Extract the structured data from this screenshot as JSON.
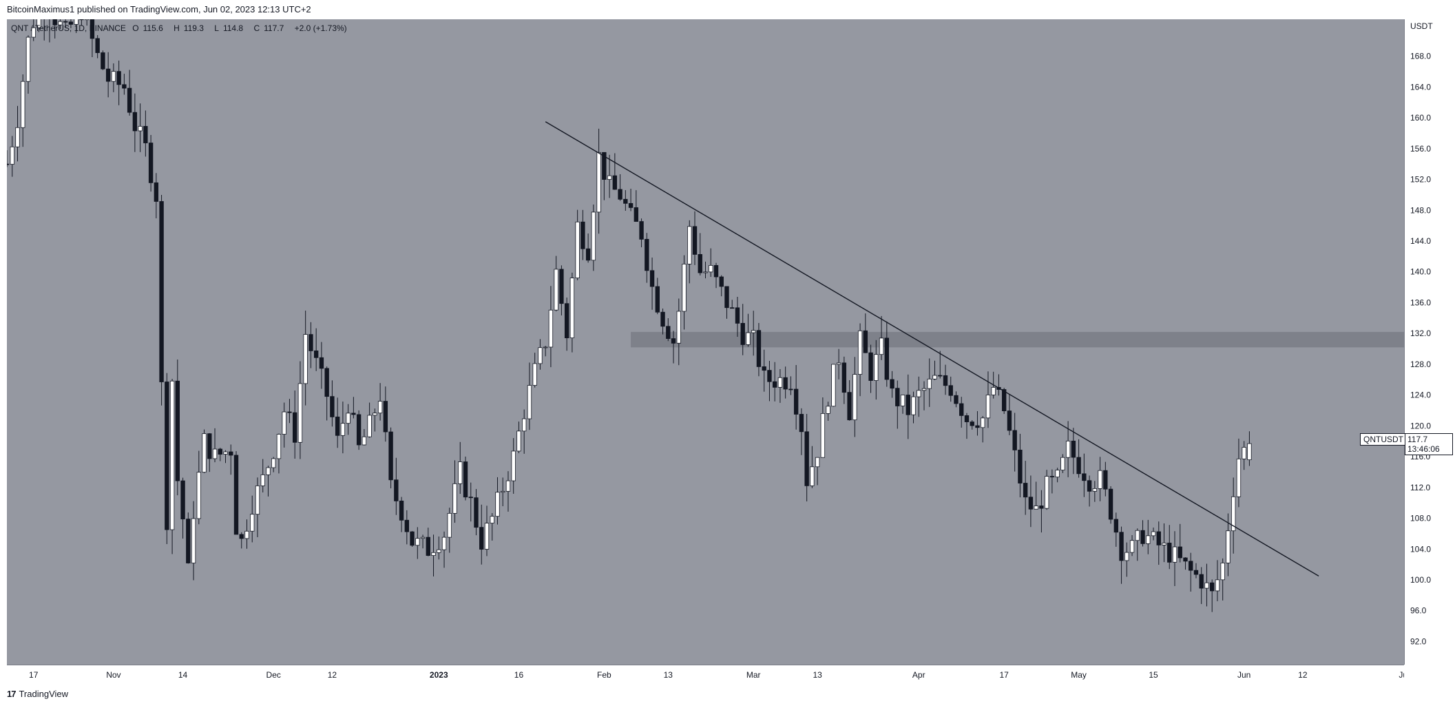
{
  "header": {
    "published_by": "BitcoinMaximus1 published on TradingView.com, Jun 02, 2023 12:13 UTC+2"
  },
  "legend": {
    "pair": "QNT / TetherUS, 1D, BINANCE",
    "open_label": "O",
    "open_value": "115.6",
    "high_label": "H",
    "high_value": "119.3",
    "low_label": "L",
    "low_value": "114.8",
    "close_label": "C",
    "close_value": "117.7",
    "change": "+2.0 (+1.73%)"
  },
  "price_tag": {
    "symbol": "QNTUSDT",
    "price": "117.7",
    "countdown": "13:46:06"
  },
  "footer": {
    "brand": "TradingView",
    "logo": "17"
  },
  "colors": {
    "plot_bg": "#9598a1",
    "up_candle": "#ffffff",
    "down_candle": "#131722",
    "wick": "#131722",
    "zone": "#7e818a"
  },
  "chart_data": {
    "type": "candlestick",
    "currency_label": "USDT",
    "y_ticks": [
      "168.0",
      "164.0",
      "160.0",
      "156.0",
      "152.0",
      "148.0",
      "144.0",
      "140.0",
      "136.0",
      "132.0",
      "128.0",
      "124.0",
      "120.0",
      "116.0",
      "112.0",
      "108.0",
      "104.0",
      "100.0",
      "96.0",
      "92.0"
    ],
    "y_tick_values": [
      168,
      164,
      160,
      156,
      152,
      148,
      144,
      140,
      136,
      132,
      128,
      124,
      120,
      116,
      112,
      108,
      104,
      100,
      96,
      92
    ],
    "x_ticks": [
      "17",
      "Nov",
      "14",
      "Dec",
      "12",
      "2023",
      "16",
      "Feb",
      "13",
      "Mar",
      "13",
      "Apr",
      "17",
      "May",
      "15",
      "Jun",
      "12",
      "Jul"
    ],
    "x_tick_dates": [
      "2022-10-17",
      "2022-11-01",
      "2022-11-14",
      "2022-12-01",
      "2022-12-12",
      "2023-01-01",
      "2023-01-16",
      "2023-02-01",
      "2023-02-13",
      "2023-03-01",
      "2023-03-13",
      "2023-04-01",
      "2023-04-17",
      "2023-05-01",
      "2023-05-15",
      "2023-06-01",
      "2023-06-12",
      "2023-07-01"
    ],
    "x_range": [
      "2022-10-12",
      "2023-07-01"
    ],
    "ylim": [
      89.0,
      172.8
    ],
    "anchor_closes": [
      [
        "2022-10-12",
        154
      ],
      [
        "2022-10-14",
        160
      ],
      [
        "2022-10-16",
        170
      ],
      [
        "2022-10-18",
        175
      ],
      [
        "2022-10-20",
        174
      ],
      [
        "2022-10-23",
        171
      ],
      [
        "2022-10-26",
        174
      ],
      [
        "2022-10-29",
        168
      ],
      [
        "2022-10-31",
        165
      ],
      [
        "2022-11-03",
        164
      ],
      [
        "2022-11-05",
        159
      ],
      [
        "2022-11-07",
        156
      ],
      [
        "2022-11-09",
        150
      ],
      [
        "2022-11-10",
        125
      ],
      [
        "2022-11-11",
        108
      ],
      [
        "2022-11-12",
        126
      ],
      [
        "2022-11-13",
        113
      ],
      [
        "2022-11-14",
        108
      ],
      [
        "2022-11-15",
        101
      ],
      [
        "2022-11-16",
        109
      ],
      [
        "2022-11-18",
        118
      ],
      [
        "2022-11-20",
        116
      ],
      [
        "2022-11-23",
        117
      ],
      [
        "2022-11-24",
        107
      ],
      [
        "2022-11-25",
        105
      ],
      [
        "2022-11-27",
        110
      ],
      [
        "2022-11-29",
        113
      ],
      [
        "2022-12-01",
        117
      ],
      [
        "2022-12-03",
        122
      ],
      [
        "2022-12-05",
        119
      ],
      [
        "2022-12-07",
        132
      ],
      [
        "2022-12-09",
        128
      ],
      [
        "2022-12-11",
        124
      ],
      [
        "2022-12-13",
        118
      ],
      [
        "2022-12-15",
        123
      ],
      [
        "2022-12-17",
        117
      ],
      [
        "2022-12-19",
        120
      ],
      [
        "2022-12-21",
        124
      ],
      [
        "2022-12-23",
        112
      ],
      [
        "2022-12-25",
        109
      ],
      [
        "2022-12-27",
        105
      ],
      [
        "2022-12-30",
        104
      ],
      [
        "2023-01-02",
        106
      ],
      [
        "2023-01-05",
        114
      ],
      [
        "2023-01-07",
        110
      ],
      [
        "2023-01-09",
        105
      ],
      [
        "2023-01-11",
        108
      ],
      [
        "2023-01-13",
        112
      ],
      [
        "2023-01-15",
        116
      ],
      [
        "2023-01-17",
        122
      ],
      [
        "2023-01-19",
        127
      ],
      [
        "2023-01-21",
        131
      ],
      [
        "2023-01-23",
        140
      ],
      [
        "2023-01-25",
        132
      ],
      [
        "2023-01-27",
        146
      ],
      [
        "2023-01-29",
        143
      ],
      [
        "2023-01-31",
        155
      ],
      [
        "2023-02-02",
        151
      ],
      [
        "2023-02-04",
        150
      ],
      [
        "2023-02-06",
        147
      ],
      [
        "2023-02-08",
        145
      ],
      [
        "2023-02-10",
        138
      ],
      [
        "2023-02-12",
        134
      ],
      [
        "2023-02-14",
        131
      ],
      [
        "2023-02-15",
        135
      ],
      [
        "2023-02-17",
        146
      ],
      [
        "2023-02-19",
        140
      ],
      [
        "2023-02-21",
        140
      ],
      [
        "2023-02-24",
        136
      ],
      [
        "2023-02-27",
        132
      ],
      [
        "2023-03-01",
        131
      ],
      [
        "2023-03-03",
        126
      ],
      [
        "2023-03-06",
        126
      ],
      [
        "2023-03-08",
        126
      ],
      [
        "2023-03-10",
        120
      ],
      [
        "2023-03-11",
        113
      ],
      [
        "2023-03-13",
        117
      ],
      [
        "2023-03-15",
        124
      ],
      [
        "2023-03-17",
        129
      ],
      [
        "2023-03-19",
        122
      ],
      [
        "2023-03-21",
        131
      ],
      [
        "2023-03-23",
        127
      ],
      [
        "2023-03-25",
        130
      ],
      [
        "2023-03-27",
        124
      ],
      [
        "2023-03-30",
        122
      ],
      [
        "2023-04-01",
        124
      ],
      [
        "2023-04-04",
        126
      ],
      [
        "2023-04-07",
        125
      ],
      [
        "2023-04-10",
        121
      ],
      [
        "2023-04-13",
        121
      ],
      [
        "2023-04-15",
        125
      ],
      [
        "2023-04-17",
        122
      ],
      [
        "2023-04-19",
        116
      ],
      [
        "2023-04-21",
        110
      ],
      [
        "2023-04-23",
        109
      ],
      [
        "2023-04-25",
        112
      ],
      [
        "2023-04-27",
        113
      ],
      [
        "2023-04-29",
        117
      ],
      [
        "2023-05-01",
        115
      ],
      [
        "2023-05-03",
        113
      ],
      [
        "2023-05-05",
        113
      ],
      [
        "2023-05-07",
        109
      ],
      [
        "2023-05-09",
        104
      ],
      [
        "2023-05-11",
        104
      ],
      [
        "2023-05-13",
        106
      ],
      [
        "2023-05-15",
        105
      ],
      [
        "2023-05-17",
        104
      ],
      [
        "2023-05-19",
        103
      ],
      [
        "2023-05-22",
        101
      ],
      [
        "2023-05-24",
        100
      ],
      [
        "2023-05-26",
        98
      ],
      [
        "2023-05-28",
        102
      ],
      [
        "2023-05-29",
        107
      ],
      [
        "2023-05-30",
        112
      ],
      [
        "2023-05-31",
        116
      ],
      [
        "2023-06-02",
        117.7
      ]
    ],
    "last_candle": {
      "date": "2023-06-02",
      "open": 115.6,
      "high": 119.3,
      "low": 114.8,
      "close": 117.7
    },
    "trendline": {
      "start": [
        "2023-01-21",
        159.5
      ],
      "end": [
        "2023-06-15",
        100.5
      ]
    },
    "horizontal_zone": {
      "x_start": "2023-02-06",
      "x_end": "2023-07-01",
      "low": 130.2,
      "high": 132.2
    },
    "grid": false
  }
}
